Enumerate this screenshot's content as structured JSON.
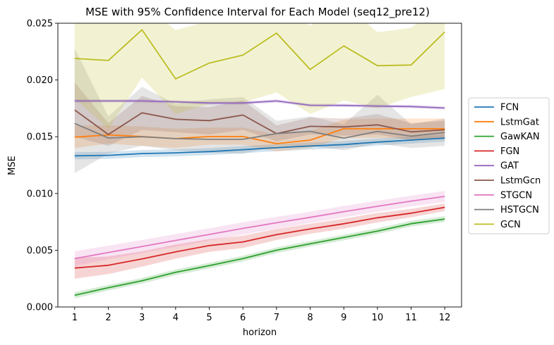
{
  "chart_data": {
    "type": "line",
    "title": "MSE with 95% Confidence Interval for Each Model (seq12_pre12)",
    "xlabel": "horizon",
    "ylabel": "MSE",
    "x": [
      1,
      2,
      3,
      4,
      5,
      6,
      7,
      8,
      9,
      10,
      11,
      12
    ],
    "xlim": [
      0.5,
      12.5
    ],
    "ylim": [
      0.0,
      0.025
    ],
    "yticks": [
      "0.000",
      "0.005",
      "0.010",
      "0.015",
      "0.020",
      "0.025"
    ],
    "legend_position": "outside-right",
    "grid": false,
    "series": [
      {
        "name": "FCN",
        "color": "#1f77b4",
        "values": [
          0.01332,
          0.01336,
          0.01352,
          0.01358,
          0.01369,
          0.01386,
          0.01404,
          0.01418,
          0.01431,
          0.01453,
          0.0147,
          0.01488
        ],
        "lower": [
          0.013,
          0.01305,
          0.01321,
          0.01327,
          0.01338,
          0.01355,
          0.01373,
          0.01387,
          0.014,
          0.01422,
          0.01439,
          0.01457
        ],
        "upper": [
          0.01364,
          0.01367,
          0.01383,
          0.01389,
          0.014,
          0.01417,
          0.01435,
          0.01449,
          0.01462,
          0.01484,
          0.01501,
          0.01519
        ]
      },
      {
        "name": "LstmGat",
        "color": "#ff7f0e",
        "values": [
          0.01496,
          0.01516,
          0.01502,
          0.01483,
          0.01502,
          0.01502,
          0.01439,
          0.0147,
          0.0157,
          0.0157,
          0.0157,
          0.0157
        ],
        "lower": [
          0.014,
          0.0144,
          0.0142,
          0.014,
          0.0143,
          0.0143,
          0.0137,
          0.014,
          0.0149,
          0.0149,
          0.0148,
          0.0148
        ],
        "upper": [
          0.016,
          0.016,
          0.0159,
          0.0157,
          0.0158,
          0.0158,
          0.0152,
          0.0155,
          0.0165,
          0.0166,
          0.0166,
          0.0166
        ]
      },
      {
        "name": "GawKAN",
        "color": "#2ca02c",
        "values": [
          0.00103,
          0.0017,
          0.00231,
          0.00305,
          0.00364,
          0.00426,
          0.005,
          0.00557,
          0.00612,
          0.00669,
          0.00734,
          0.00775
        ],
        "lower": [
          0.00075,
          0.00145,
          0.00206,
          0.0028,
          0.00339,
          0.00401,
          0.00475,
          0.00532,
          0.00587,
          0.00644,
          0.00709,
          0.0075
        ],
        "upper": [
          0.00131,
          0.00195,
          0.00256,
          0.0033,
          0.00389,
          0.00451,
          0.00525,
          0.00582,
          0.00637,
          0.00694,
          0.00759,
          0.008
        ]
      },
      {
        "name": "FGN",
        "color": "#d62728",
        "values": [
          0.00343,
          0.00367,
          0.00423,
          0.00486,
          0.00541,
          0.00573,
          0.00638,
          0.00688,
          0.00733,
          0.00786,
          0.00826,
          0.00878
        ],
        "lower": [
          0.0025,
          0.0029,
          0.00355,
          0.00425,
          0.00485,
          0.0052,
          0.0059,
          0.00645,
          0.0069,
          0.00745,
          0.0079,
          0.00845
        ],
        "upper": [
          0.00435,
          0.00445,
          0.0049,
          0.0055,
          0.00598,
          0.00628,
          0.00688,
          0.00733,
          0.00778,
          0.00828,
          0.00865,
          0.00912
        ]
      },
      {
        "name": "GAT",
        "color": "#9467bd",
        "values": [
          0.01815,
          0.01815,
          0.01815,
          0.01808,
          0.01797,
          0.01797,
          0.01815,
          0.01777,
          0.01776,
          0.0177,
          0.01766,
          0.01753
        ],
        "lower": [
          0.018,
          0.018,
          0.018,
          0.01793,
          0.01782,
          0.01782,
          0.018,
          0.01762,
          0.01761,
          0.01755,
          0.01751,
          0.01738
        ],
        "upper": [
          0.0183,
          0.0183,
          0.0183,
          0.01823,
          0.01812,
          0.01812,
          0.0183,
          0.01792,
          0.01791,
          0.01785,
          0.01781,
          0.01768
        ]
      },
      {
        "name": "LstmGcn",
        "color": "#8c564b",
        "values": [
          0.01736,
          0.0152,
          0.01711,
          0.01654,
          0.01642,
          0.01691,
          0.01527,
          0.01592,
          0.01586,
          0.01605,
          0.01543,
          0.01561
        ],
        "lower": [
          0.015,
          0.0142,
          0.0156,
          0.0154,
          0.0152,
          0.0156,
          0.0146,
          0.0152,
          0.0151,
          0.0152,
          0.0147,
          0.0148
        ],
        "upper": [
          0.0198,
          0.0162,
          0.0186,
          0.0177,
          0.0176,
          0.0182,
          0.016,
          0.0167,
          0.0166,
          0.017,
          0.0162,
          0.0164
        ]
      },
      {
        "name": "STGCN",
        "color": "#e377c2",
        "values": [
          0.00426,
          0.0048,
          0.00533,
          0.00586,
          0.00639,
          0.00692,
          0.00742,
          0.0079,
          0.0084,
          0.00887,
          0.00933,
          0.00974
        ],
        "lower": [
          0.0036,
          0.0042,
          0.00475,
          0.0053,
          0.00585,
          0.00638,
          0.0069,
          0.0074,
          0.0079,
          0.00838,
          0.00885,
          0.00925
        ],
        "upper": [
          0.00492,
          0.0054,
          0.00591,
          0.00642,
          0.00693,
          0.00746,
          0.00794,
          0.0084,
          0.0089,
          0.00936,
          0.00981,
          0.01023
        ]
      },
      {
        "name": "HSTGCN",
        "color": "#7f7f7f",
        "values": [
          0.01617,
          0.01489,
          0.015,
          0.01483,
          0.01477,
          0.01477,
          0.01527,
          0.01548,
          0.01487,
          0.01547,
          0.01505,
          0.01537
        ],
        "lower": [
          0.0118,
          0.0135,
          0.0142,
          0.0138,
          0.0136,
          0.0135,
          0.0142,
          0.0142,
          0.0138,
          0.0144,
          0.014,
          0.0142
        ],
        "upper": [
          0.0228,
          0.0168,
          0.0194,
          0.0179,
          0.0183,
          0.0185,
          0.0164,
          0.0168,
          0.0161,
          0.0187,
          0.0161,
          0.0166
        ]
      },
      {
        "name": "GCN",
        "color": "#bcbd22",
        "values": [
          0.0219,
          0.02172,
          0.02442,
          0.0201,
          0.02149,
          0.02219,
          0.02413,
          0.02093,
          0.023,
          0.02126,
          0.02132,
          0.02423
        ],
        "lower": [
          0.0184,
          0.0157,
          0.0202,
          0.017,
          0.0179,
          0.018,
          0.0189,
          0.017,
          0.0182,
          0.0175,
          0.0185,
          0.0192
        ],
        "upper": [
          0.0256,
          0.0262,
          0.0268,
          0.0244,
          0.0252,
          0.0259,
          0.0266,
          0.0248,
          0.0268,
          0.0242,
          0.0246,
          0.0268
        ]
      }
    ]
  }
}
